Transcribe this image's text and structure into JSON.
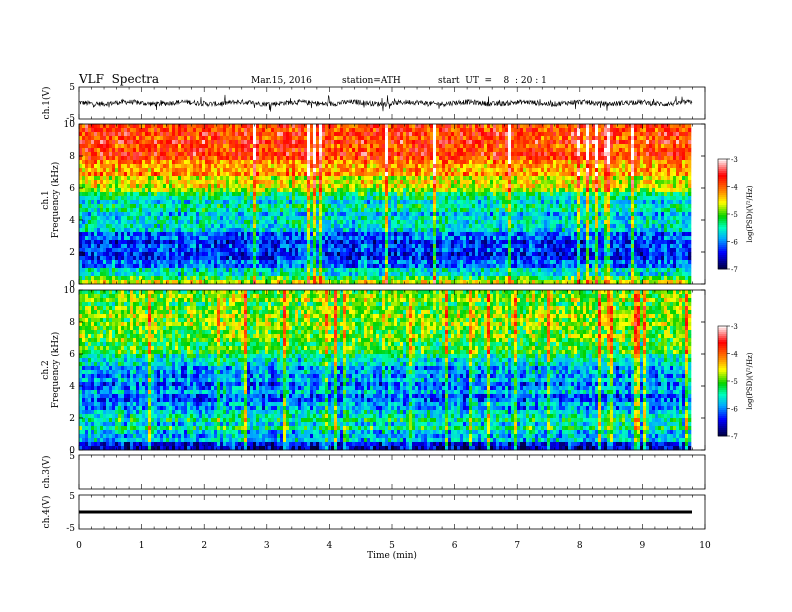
{
  "header": {
    "title": "VLF  Spectra",
    "date": "Mar.15, 2016",
    "station": "station=ATH",
    "start": "start  UT  =    8  : 20 : 1"
  },
  "colors": {
    "scale": [
      "#000040",
      "#0000ff",
      "#00b0ff",
      "#00ffb0",
      "#00d000",
      "#ffff00",
      "#ff8000",
      "#ff0000",
      "#ffffff"
    ],
    "axis": "#000000",
    "trace": "#000000"
  },
  "chart_data": [
    {
      "type": "line",
      "panel": "ch1-waveform",
      "ylabel": "ch.1(V)",
      "ylim": [
        -5,
        5
      ],
      "yticks": [
        "5",
        "-5"
      ],
      "xlim": [
        0,
        10
      ],
      "note_values": "noisy waveform, amplitude mostly within about ±1.5 V with spikes"
    },
    {
      "type": "heatmap",
      "panel": "ch1-spectrogram",
      "ylabel": "ch.1\nFrequency  (kHz)",
      "ylabel_lines": [
        "ch.1",
        "Frequency  (kHz)"
      ],
      "ylim": [
        0,
        10
      ],
      "yticks": [
        "0",
        "2",
        "4",
        "6",
        "8",
        "10"
      ],
      "xlim": [
        0,
        9.8
      ],
      "colorbar": {
        "label": "log(PSD)(V²/Hz)",
        "ticks": [
          "-3",
          "-4",
          "-5",
          "-6",
          "-7"
        ],
        "range": [
          -7,
          -3
        ]
      },
      "profile_khz": [
        0,
        0.5,
        1,
        2,
        2.5,
        3,
        4,
        5,
        6,
        7,
        8,
        9,
        10
      ],
      "profile_logpsd": [
        -4.2,
        -5.5,
        -5.9,
        -6.4,
        -6.3,
        -6.0,
        -5.8,
        -5.6,
        -4.9,
        -4.3,
        -3.9,
        -3.8,
        -3.8
      ]
    },
    {
      "type": "heatmap",
      "panel": "ch2-spectrogram",
      "ylabel": "ch.2\nFrequency  (kHz)",
      "ylabel_lines": [
        "ch.2",
        "Frequency  (kHz)"
      ],
      "ylim": [
        0,
        10
      ],
      "yticks": [
        "0",
        "2",
        "4",
        "6",
        "8",
        "10"
      ],
      "xlim": [
        0,
        9.8
      ],
      "colorbar": {
        "label": "log(PSD)(V²/Hz)",
        "ticks": [
          "-3",
          "-4",
          "-5",
          "-6",
          "-7"
        ],
        "range": [
          -7,
          -3
        ]
      },
      "profile_khz": [
        0,
        0.5,
        1,
        2,
        3,
        4,
        5,
        6,
        7,
        8,
        9,
        10
      ],
      "profile_logpsd": [
        -6.8,
        -6.0,
        -5.6,
        -5.4,
        -5.9,
        -6.0,
        -5.8,
        -5.3,
        -5.0,
        -4.9,
        -4.9,
        -5.0
      ]
    },
    {
      "type": "line",
      "panel": "ch3-waveform",
      "ylabel": "ch.3(V)",
      "ylim": [
        -5,
        5
      ],
      "yticks": [
        "5"
      ],
      "xlim": [
        0,
        10
      ],
      "note_values": "empty"
    },
    {
      "type": "line",
      "panel": "ch4-waveform",
      "ylabel": "ch.4(V)",
      "ylim": [
        -5,
        5
      ],
      "yticks": [
        "5",
        "-5"
      ],
      "xlim": [
        0,
        10
      ],
      "level": 0
    },
    {
      "type": "axis",
      "panel": "time-axis",
      "xlabel": "Time  (min)",
      "xticks": [
        "0",
        "1",
        "2",
        "3",
        "4",
        "5",
        "6",
        "7",
        "8",
        "9",
        "10"
      ],
      "xlim": [
        0,
        10
      ]
    }
  ]
}
